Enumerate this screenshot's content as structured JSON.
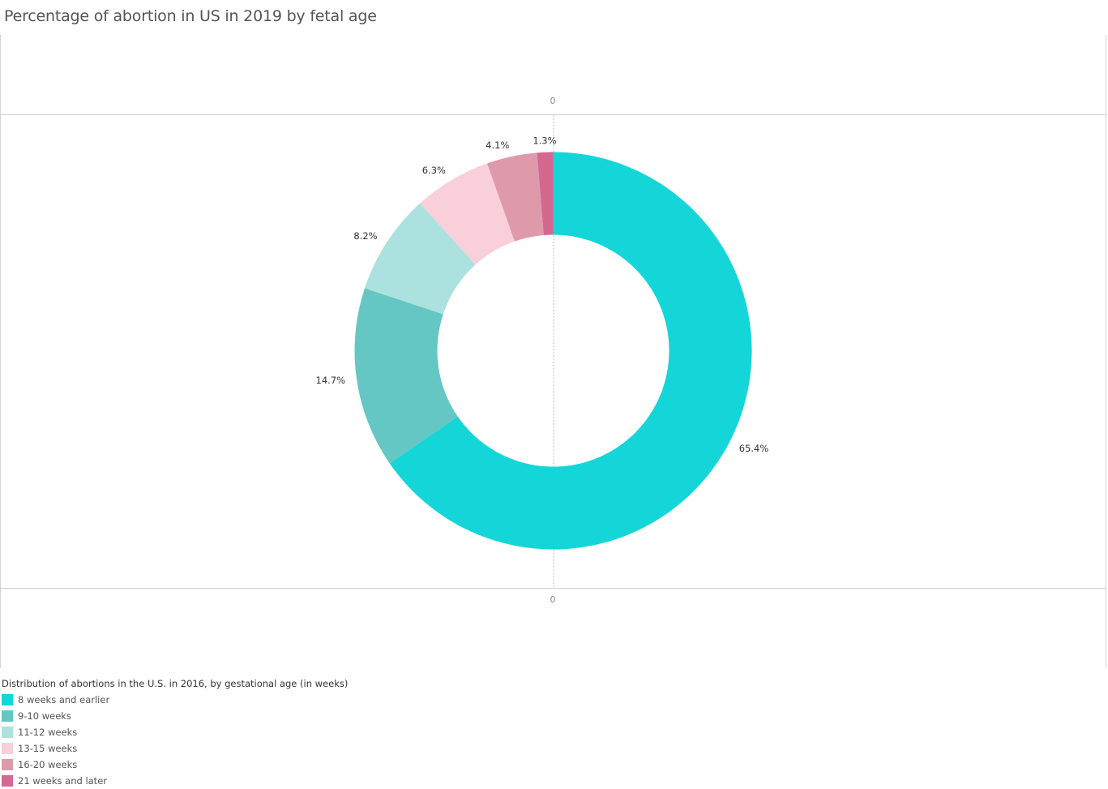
{
  "title": "Percentage of abortion in US in 2019 by fetal age",
  "axis": {
    "top_label": "0",
    "bottom_label": "0"
  },
  "legend": {
    "title": "Distribution of abortions in the U.S. in 2016, by gestational age (in weeks)",
    "items": [
      {
        "label": "8 weeks and earlier",
        "color": "#14d6d8"
      },
      {
        "label": "9-10 weeks",
        "color": "#65c7c3"
      },
      {
        "label": "11-12 weeks",
        "color": "#abe2df"
      },
      {
        "label": "13-15 weeks",
        "color": "#f9cfda"
      },
      {
        "label": "16-20 weeks",
        "color": "#de9aab"
      },
      {
        "label": "21 weeks and later",
        "color": "#d46891"
      }
    ]
  },
  "chart_data": {
    "type": "pie",
    "subtype": "donut",
    "title": "Percentage of abortion in US in 2019 by fetal age",
    "legend_title": "Distribution of abortions in the U.S. in 2016, by gestational age (in weeks)",
    "legend_position": "bottom-left",
    "categories": [
      "8 weeks and earlier",
      "9-10 weeks",
      "11-12 weeks",
      "13-15 weeks",
      "16-20 weeks",
      "21 weeks and later"
    ],
    "values": [
      65.4,
      14.7,
      8.2,
      6.3,
      4.1,
      1.3
    ],
    "labels": [
      "65.4%",
      "14.7%",
      "8.2%",
      "6.3%",
      "4.1%",
      "1.3%"
    ],
    "colors": [
      "#14d6d8",
      "#65c7c3",
      "#abe2df",
      "#f9cfda",
      "#de9aab",
      "#d46891"
    ],
    "start_angle": "12 o'clock",
    "direction": "clockwise",
    "axis_tick_labels": [
      "0",
      "0"
    ],
    "grid": false
  }
}
